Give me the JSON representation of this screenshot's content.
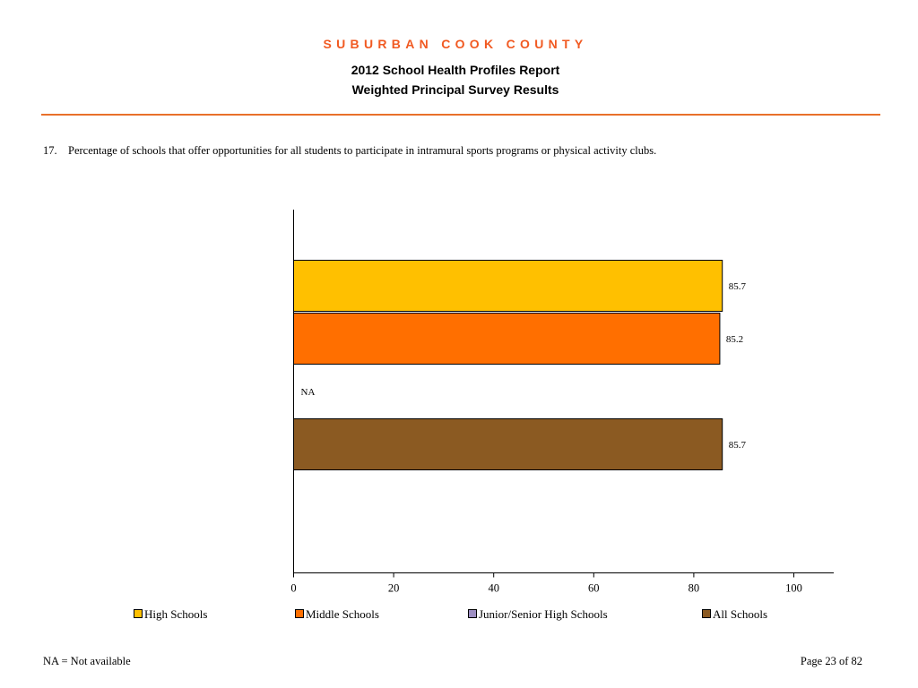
{
  "header": {
    "county": "SUBURBAN COOK COUNTY",
    "title": "2012 School Health Profiles Report",
    "subtitle": "Weighted Principal Survey Results",
    "accent_color": "#f15a22"
  },
  "question": {
    "number": "17.",
    "text": "Percentage of schools that offer opportunities for all students to participate in intramural sports programs or physical activity clubs."
  },
  "chart_data": {
    "type": "bar",
    "orientation": "horizontal",
    "categories": [
      "High Schools",
      "Middle Schools",
      "Junior/Senior High Schools",
      "All Schools"
    ],
    "values": [
      85.7,
      85.2,
      null,
      85.7
    ],
    "value_labels": [
      "85.7",
      "85.2",
      "NA",
      "85.7"
    ],
    "colors": [
      "#ffc000",
      "#ff6f00",
      "#9e8fc3",
      "#8b5a22"
    ],
    "xlim": [
      0,
      100
    ],
    "xticks": [
      0,
      20,
      40,
      60,
      80,
      100
    ],
    "grid": false,
    "legend_position": "bottom"
  },
  "legend": {
    "items": [
      {
        "label": "High Schools",
        "color": "#ffc000"
      },
      {
        "label": "Middle Schools",
        "color": "#ff6f00"
      },
      {
        "label": "Junior/Senior High Schools",
        "color": "#9e8fc3"
      },
      {
        "label": "All Schools",
        "color": "#8b5a22"
      }
    ]
  },
  "footer": {
    "note": "NA = Not available",
    "page": "Page 23 of 82"
  }
}
